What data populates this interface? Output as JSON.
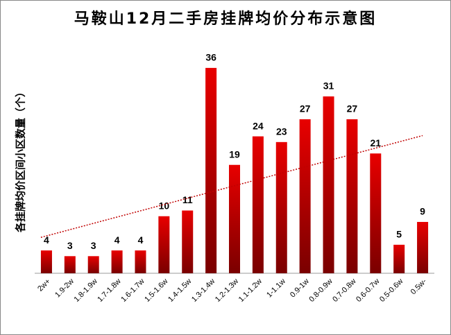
{
  "chart_data": {
    "type": "bar",
    "title": "马鞍山12月二手房挂牌均价分布示意图",
    "y_label": "各挂牌均价区间小区数量（个）",
    "categories": [
      "2w+",
      "1.9-2w",
      "1.8-1.9w",
      "1.7-1.8w",
      "1.6-1.7w",
      "1.5-1.6w",
      "1.4-1.5w",
      "1.3-1.4w",
      "1.2-1.3w",
      "1.1-1.2w",
      "1-1.1w",
      "0.9-1w",
      "0.8-0.9w",
      "0.7-0.8w",
      "0.6-0.7w",
      "0.5-0.6w",
      "0.5w-"
    ],
    "values": [
      4,
      3,
      3,
      4,
      4,
      10,
      11,
      36,
      19,
      24,
      23,
      27,
      31,
      27,
      21,
      5,
      9
    ],
    "color": "#e00000",
    "ylim": [
      0,
      40
    ],
    "trendline": true,
    "trendline_color": "#c00000"
  }
}
